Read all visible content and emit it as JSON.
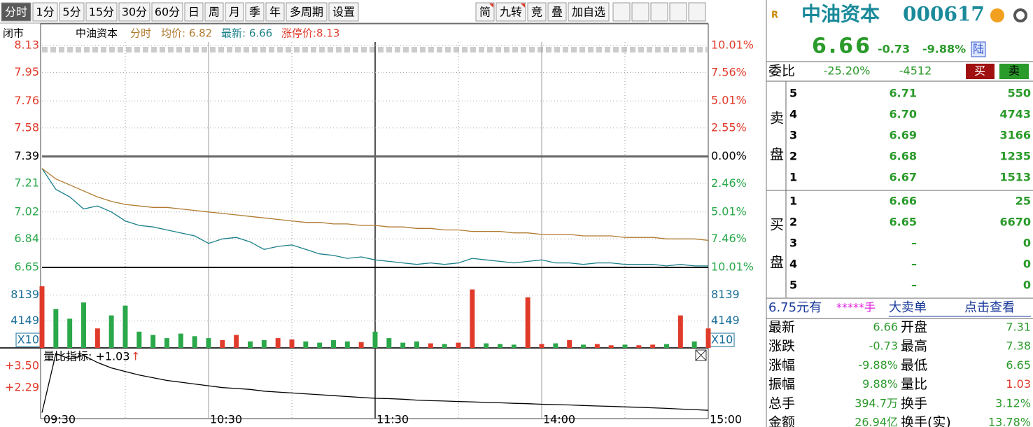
{
  "toolbar": {
    "periods": [
      "分时",
      "1分",
      "5分",
      "15分",
      "30分",
      "60分",
      "日",
      "周",
      "月",
      "季",
      "年",
      "多周期",
      "设置"
    ],
    "tools": [
      "简",
      "九转",
      "竞",
      "叠",
      "加自选"
    ]
  },
  "chart_header": {
    "status": "闭市",
    "name": "中油资本",
    "mode": "分时",
    "avg": "均价: 6.82",
    "latest": "最新: 6.66",
    "limit_up": "涨停价:8.13"
  },
  "chart_data": [
    {
      "type": "line",
      "x": [
        "09:30",
        "09:35",
        "09:40",
        "09:45",
        "09:50",
        "09:55",
        "10:00",
        "10:05",
        "10:10",
        "10:15",
        "10:20",
        "10:25",
        "10:30",
        "10:35",
        "10:40",
        "10:45",
        "10:50",
        "10:55",
        "11:00",
        "11:05",
        "11:10",
        "11:15",
        "11:20",
        "11:25",
        "11:30",
        "13:05",
        "13:10",
        "13:15",
        "13:20",
        "13:25",
        "13:30",
        "13:35",
        "13:40",
        "13:45",
        "13:50",
        "13:55",
        "14:00",
        "14:05",
        "14:10",
        "14:15",
        "14:20",
        "14:25",
        "14:30",
        "14:35",
        "14:40",
        "14:45",
        "14:50",
        "14:55",
        "15:00"
      ],
      "xticks": [
        "09:30",
        "10:30",
        "11:30",
        "14:00",
        "15:00"
      ],
      "series": [
        {
          "color": "#1a7f8a",
          "values": [
            7.31,
            7.17,
            7.12,
            7.04,
            7.06,
            7.02,
            6.96,
            6.93,
            6.92,
            6.9,
            6.88,
            6.86,
            6.81,
            6.84,
            6.85,
            6.82,
            6.77,
            6.79,
            6.8,
            6.77,
            6.74,
            6.73,
            6.71,
            6.72,
            6.7,
            6.69,
            6.68,
            6.67,
            6.68,
            6.67,
            6.68,
            6.71,
            6.7,
            6.69,
            6.68,
            6.69,
            6.7,
            6.68,
            6.68,
            6.67,
            6.68,
            6.68,
            6.67,
            6.67,
            6.67,
            6.66,
            6.67,
            6.66,
            6.66
          ]
        },
        {
          "color": "#b07a30",
          "values": [
            7.31,
            7.24,
            7.2,
            7.16,
            7.12,
            7.09,
            7.07,
            7.06,
            7.05,
            7.05,
            7.04,
            7.03,
            7.02,
            7.01,
            7.0,
            6.99,
            6.98,
            6.97,
            6.96,
            6.95,
            6.95,
            6.94,
            6.94,
            6.93,
            6.93,
            6.92,
            6.92,
            6.91,
            6.91,
            6.9,
            6.9,
            6.89,
            6.89,
            6.89,
            6.88,
            6.88,
            6.87,
            6.87,
            6.87,
            6.86,
            6.86,
            6.86,
            6.85,
            6.85,
            6.85,
            6.84,
            6.84,
            6.84,
            6.83
          ]
        }
      ],
      "ylim": [
        6.65,
        8.13
      ],
      "yticks": [
        8.13,
        7.95,
        7.76,
        7.58,
        7.39,
        7.21,
        7.02,
        6.84,
        6.65
      ],
      "y2lim": [
        -10.01,
        10.01
      ],
      "y2ticks": [
        {
          "value": 10.01,
          "label": "10.01%"
        },
        {
          "value": 7.56,
          "label": "7.56%"
        },
        {
          "value": 5.01,
          "label": "5.01%"
        },
        {
          "value": 2.55,
          "label": "2.55%"
        },
        {
          "value": 0,
          "label": "0.00%"
        },
        {
          "value": -2.46,
          "label": "2.46%"
        },
        {
          "value": -5.01,
          "label": "5.01%"
        },
        {
          "value": -7.46,
          "label": "7.46%"
        },
        {
          "value": -10.01,
          "label": "10.01%"
        }
      ],
      "grid": true
    },
    {
      "type": "bar",
      "values": [
        9500,
        6000,
        4500,
        7000,
        3000,
        5000,
        6500,
        2500,
        2000,
        1500,
        2200,
        1800,
        1500,
        1200,
        2000,
        1000,
        1200,
        1500,
        1300,
        1000,
        800,
        1200,
        1000,
        900,
        2500,
        1500,
        800,
        1000,
        700,
        600,
        800,
        9000,
        700,
        600,
        500,
        7800,
        600,
        700,
        1200,
        500,
        600,
        400,
        500,
        400,
        500,
        600,
        5000,
        1000,
        3000
      ],
      "up_color": "#e03a2a",
      "down_color": "#2aa84a",
      "ylim": [
        0,
        12290
      ],
      "yticks": [
        8139,
        4149
      ],
      "unit_label": "X10"
    },
    {
      "type": "line",
      "title": "量比指标: +1.03",
      "arrow": "↑",
      "color": "#000000",
      "values": [
        0.9,
        4.2,
        3.9,
        4.1,
        3.7,
        3.4,
        3.2,
        3.0,
        2.85,
        2.7,
        2.6,
        2.5,
        2.4,
        2.3,
        2.25,
        2.2,
        2.1,
        2.05,
        2.0,
        1.95,
        1.9,
        1.85,
        1.8,
        1.75,
        1.7,
        1.68,
        1.65,
        1.6,
        1.57,
        1.55,
        1.52,
        1.5,
        1.47,
        1.45,
        1.42,
        1.4,
        1.37,
        1.35,
        1.33,
        1.3,
        1.27,
        1.25,
        1.22,
        1.2,
        1.17,
        1.14,
        1.1,
        1.07,
        1.03
      ],
      "ylim": [
        0.88,
        4.4
      ],
      "yticks": [
        {
          "value": 3.5,
          "label": "+3.50"
        },
        {
          "value": 2.29,
          "label": "+2.29"
        }
      ]
    }
  ],
  "quote": {
    "badge": "R",
    "name": "中油资本",
    "code": "000617",
    "price": "6.66",
    "change": "-0.73",
    "change_pct": "-9.88%",
    "market": "陆",
    "ratio_label": "委比",
    "ratio_pct": "-25.20%",
    "ratio_diff": "-4512",
    "buy_button": "买",
    "sell_button": "卖",
    "sell_label": [
      "卖",
      "盘"
    ],
    "sell": [
      [
        "5",
        "6.71",
        "550"
      ],
      [
        "4",
        "6.70",
        "4743"
      ],
      [
        "3",
        "6.69",
        "3166"
      ],
      [
        "2",
        "6.68",
        "1235"
      ],
      [
        "1",
        "6.67",
        "1513"
      ]
    ],
    "buy_label": [
      "买",
      "盘"
    ],
    "buy": [
      [
        "1",
        "6.66",
        "25"
      ],
      [
        "2",
        "6.65",
        "6670"
      ],
      [
        "3",
        "–",
        "0"
      ],
      [
        "4",
        "–",
        "0"
      ],
      [
        "5",
        "–",
        "0"
      ]
    ],
    "banner": [
      "6.75元有",
      "*****手",
      "大卖单",
      "点击查看"
    ],
    "stats": [
      [
        "最新",
        "6.66",
        "开盘",
        "7.31"
      ],
      [
        "涨跌",
        "-0.73",
        "最高",
        "7.38"
      ],
      [
        "涨幅",
        "-9.88%",
        "最低",
        "6.65"
      ],
      [
        "振幅",
        "9.88%",
        "量比",
        "1.03"
      ],
      [
        "总手",
        "394.7万",
        "换手",
        "3.12%"
      ],
      [
        "金额",
        "26.94亿",
        "换手(实)",
        "13.78%"
      ]
    ]
  }
}
